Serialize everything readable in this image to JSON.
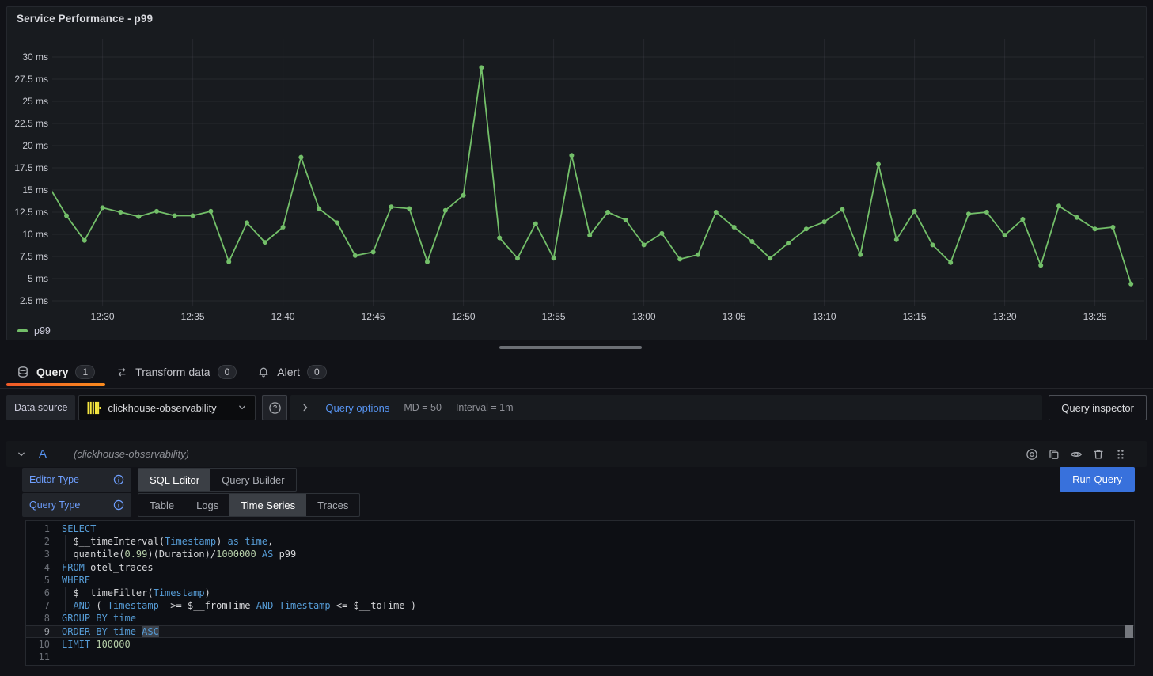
{
  "colors": {
    "series_green": "#73bf69",
    "tab_underline_start": "#f05a28",
    "tab_underline_end": "#fa8b1e",
    "primary_button_blue": "#3871dc",
    "label_blue": "#6e9fff",
    "link_blue": "#5794f2",
    "keyword_blue": "#569cd6",
    "number_green": "#b5cea8",
    "clickhouse_yellow": "#f6e740"
  },
  "panel": {
    "title": "Service Performance - p99",
    "legend": {
      "series": "p99",
      "color": "#73bf69"
    }
  },
  "chart_data": {
    "type": "line",
    "title": "Service Performance - p99",
    "xlabel": "",
    "ylabel": "",
    "unit": "ms",
    "grid": true,
    "legend_position": "bottom-left",
    "x_ticks": [
      "12:30",
      "12:35",
      "12:40",
      "12:45",
      "12:50",
      "12:55",
      "13:00",
      "13:05",
      "13:10",
      "13:15",
      "13:20",
      "13:25"
    ],
    "y_ticks": [
      "30 ms",
      "27.5 ms",
      "25 ms",
      "22.5 ms",
      "20 ms",
      "17.5 ms",
      "15 ms",
      "12.5 ms",
      "10 ms",
      "7.5 ms",
      "5 ms",
      "2.5 ms"
    ],
    "y_axis": {
      "min": 2.5,
      "max": 30,
      "step": 2.5,
      "unit": "ms"
    },
    "x_start": "12:27",
    "x_step_minutes": 1,
    "series": [
      {
        "name": "p99",
        "color": "#73bf69",
        "times": [
          "12:27",
          "12:28",
          "12:29",
          "12:30",
          "12:31",
          "12:32",
          "12:33",
          "12:34",
          "12:35",
          "12:36",
          "12:37",
          "12:38",
          "12:39",
          "12:40",
          "12:41",
          "12:42",
          "12:43",
          "12:44",
          "12:45",
          "12:46",
          "12:47",
          "12:48",
          "12:49",
          "12:50",
          "12:51",
          "12:52",
          "12:53",
          "12:54",
          "12:55",
          "12:56",
          "12:57",
          "12:58",
          "12:59",
          "13:00",
          "13:01",
          "13:02",
          "13:03",
          "13:04",
          "13:05",
          "13:06",
          "13:07",
          "13:08",
          "13:09",
          "13:10",
          "13:11",
          "13:12",
          "13:13",
          "13:14",
          "13:15",
          "13:16",
          "13:17",
          "13:18",
          "13:19",
          "13:20",
          "13:21",
          "13:22",
          "13:23",
          "13:24",
          "13:25",
          "13:26",
          "13:27"
        ],
        "values": [
          15.5,
          12.1,
          9.3,
          13.0,
          12.5,
          12.0,
          12.6,
          12.1,
          12.1,
          12.6,
          6.9,
          11.3,
          9.1,
          10.8,
          18.7,
          12.9,
          11.3,
          7.6,
          8.0,
          13.1,
          12.9,
          6.9,
          12.7,
          14.4,
          28.8,
          9.6,
          7.3,
          11.2,
          7.3,
          18.9,
          9.9,
          12.5,
          11.6,
          8.8,
          10.1,
          7.2,
          7.7,
          12.5,
          10.8,
          9.2,
          7.3,
          9.0,
          10.6,
          11.4,
          12.8,
          7.7,
          17.9,
          9.4,
          12.6,
          8.8,
          6.8,
          12.3,
          12.5,
          9.9,
          11.7,
          6.5,
          13.2,
          11.9,
          10.6,
          10.8,
          4.4
        ]
      }
    ]
  },
  "tabs": [
    {
      "id": "query",
      "label": "Query",
      "count": "1",
      "icon": "database-icon",
      "active": true
    },
    {
      "id": "transform",
      "label": "Transform data",
      "count": "0",
      "icon": "transform-icon",
      "active": false
    },
    {
      "id": "alert",
      "label": "Alert",
      "count": "0",
      "icon": "bell-icon",
      "active": false
    }
  ],
  "toolbar": {
    "datasource_label": "Data source",
    "datasource_value": "clickhouse-observability",
    "query_options": {
      "label": "Query options",
      "max_data_points": "MD = 50",
      "interval": "Interval = 1m"
    },
    "query_inspector_label": "Query inspector"
  },
  "query_row": {
    "ref_id": "A",
    "datasource_hint": "(clickhouse-observability)",
    "actions": [
      "disable-query-icon",
      "duplicate-query-icon",
      "hide-response-icon",
      "delete-query-icon",
      "drag-handle-icon"
    ],
    "editor_type": {
      "label": "Editor Type",
      "options": [
        "SQL Editor",
        "Query Builder"
      ],
      "selected": "SQL Editor"
    },
    "query_type": {
      "label": "Query Type",
      "options": [
        "Table",
        "Logs",
        "Time Series",
        "Traces"
      ],
      "selected": "Time Series"
    },
    "run_query_label": "Run Query"
  },
  "sql_editor": {
    "language": "sql",
    "current_line": 9,
    "lines": [
      {
        "n": 1,
        "tokens": [
          {
            "t": "SELECT",
            "c": "kw"
          }
        ]
      },
      {
        "n": 2,
        "indent": true,
        "tokens": [
          {
            "t": "  $__timeInterval(",
            "c": "pl"
          },
          {
            "t": "Timestamp",
            "c": "kw"
          },
          {
            "t": ") ",
            "c": "pl"
          },
          {
            "t": "as time",
            "c": "kw"
          },
          {
            "t": ",",
            "c": "pl"
          }
        ]
      },
      {
        "n": 3,
        "indent": true,
        "tokens": [
          {
            "t": "  quantile(",
            "c": "pl"
          },
          {
            "t": "0.99",
            "c": "nu"
          },
          {
            "t": ")(Duration)/",
            "c": "pl"
          },
          {
            "t": "1000000",
            "c": "nu"
          },
          {
            "t": " ",
            "c": "pl"
          },
          {
            "t": "AS",
            "c": "kw"
          },
          {
            "t": " p99",
            "c": "pl"
          }
        ]
      },
      {
        "n": 4,
        "tokens": [
          {
            "t": "FROM",
            "c": "kw"
          },
          {
            "t": " otel_traces",
            "c": "pl"
          }
        ]
      },
      {
        "n": 5,
        "tokens": [
          {
            "t": "WHERE",
            "c": "kw"
          }
        ]
      },
      {
        "n": 6,
        "indent": true,
        "tokens": [
          {
            "t": "  $__timeFilter(",
            "c": "pl"
          },
          {
            "t": "Timestamp",
            "c": "kw"
          },
          {
            "t": ")",
            "c": "pl"
          }
        ]
      },
      {
        "n": 7,
        "indent": true,
        "tokens": [
          {
            "t": "  ",
            "c": "pl"
          },
          {
            "t": "AND",
            "c": "kw"
          },
          {
            "t": " ( ",
            "c": "pl"
          },
          {
            "t": "Timestamp",
            "c": "kw"
          },
          {
            "t": "  >= $__fromTime ",
            "c": "pl"
          },
          {
            "t": "AND",
            "c": "kw"
          },
          {
            "t": " ",
            "c": "pl"
          },
          {
            "t": "Timestamp",
            "c": "kw"
          },
          {
            "t": " <= $__toTime )",
            "c": "pl"
          }
        ]
      },
      {
        "n": 8,
        "tokens": [
          {
            "t": "GROUP BY time",
            "c": "kw"
          }
        ]
      },
      {
        "n": 9,
        "tokens": [
          {
            "t": "ORDER BY time ",
            "c": "kw"
          },
          {
            "t": "ASC",
            "c": "kw",
            "sel": true
          }
        ]
      },
      {
        "n": 10,
        "tokens": [
          {
            "t": "LIMIT",
            "c": "kw"
          },
          {
            "t": " ",
            "c": "pl"
          },
          {
            "t": "100000",
            "c": "nu"
          }
        ]
      },
      {
        "n": 11,
        "tokens": []
      }
    ]
  }
}
